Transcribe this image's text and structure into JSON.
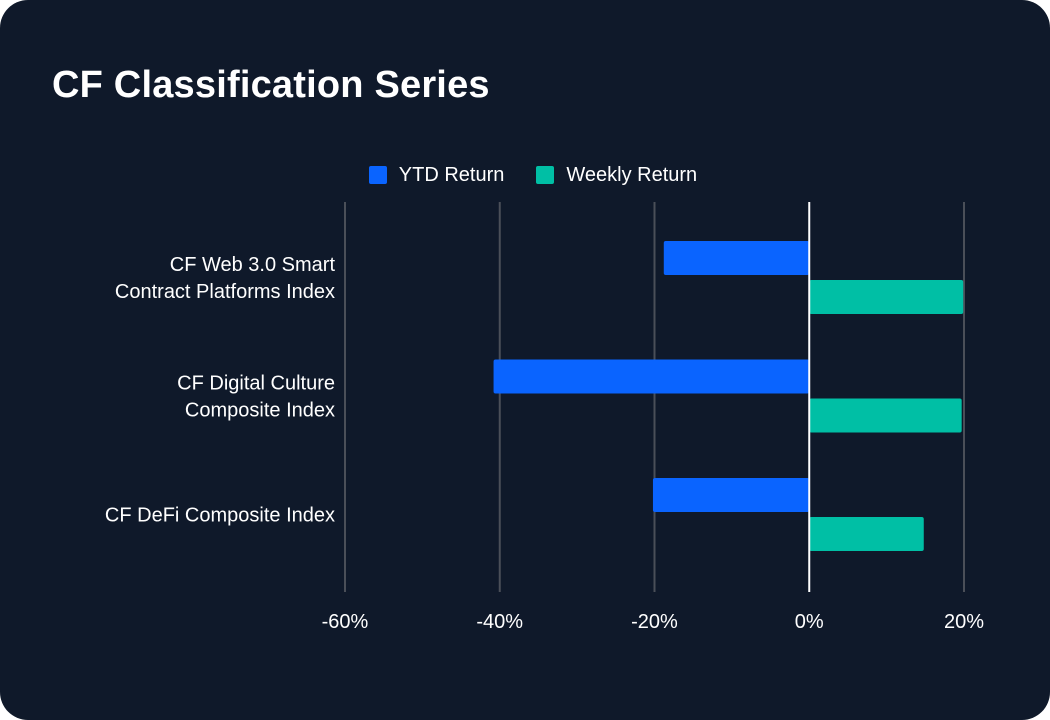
{
  "title": "CF Classification Series",
  "colors": {
    "background": "#0f192a",
    "grid": "#4a4f58",
    "zero_line": "#ffffff"
  },
  "chart_data": {
    "type": "bar",
    "orientation": "horizontal",
    "categories": [
      [
        "CF Web 3.0 Smart",
        "Contract Platforms Index"
      ],
      [
        "CF Digital Culture",
        "Composite Index"
      ],
      [
        "CF DeFi Composite Index"
      ]
    ],
    "series": [
      {
        "name": "YTD Return",
        "color": "#0a64ff",
        "values": [
          -18.8,
          -40.8,
          -20.2
        ]
      },
      {
        "name": "Weekly Return",
        "color": "#00bfa5",
        "values": [
          19.9,
          19.7,
          14.8
        ]
      }
    ],
    "xlim": [
      -60,
      20
    ],
    "xticks": [
      -60,
      -40,
      -20,
      0,
      20
    ],
    "xtick_labels": [
      "-60%",
      "-40%",
      "-20%",
      "0%",
      "20%"
    ],
    "legend_position": "top-center",
    "grid": "vertical"
  }
}
